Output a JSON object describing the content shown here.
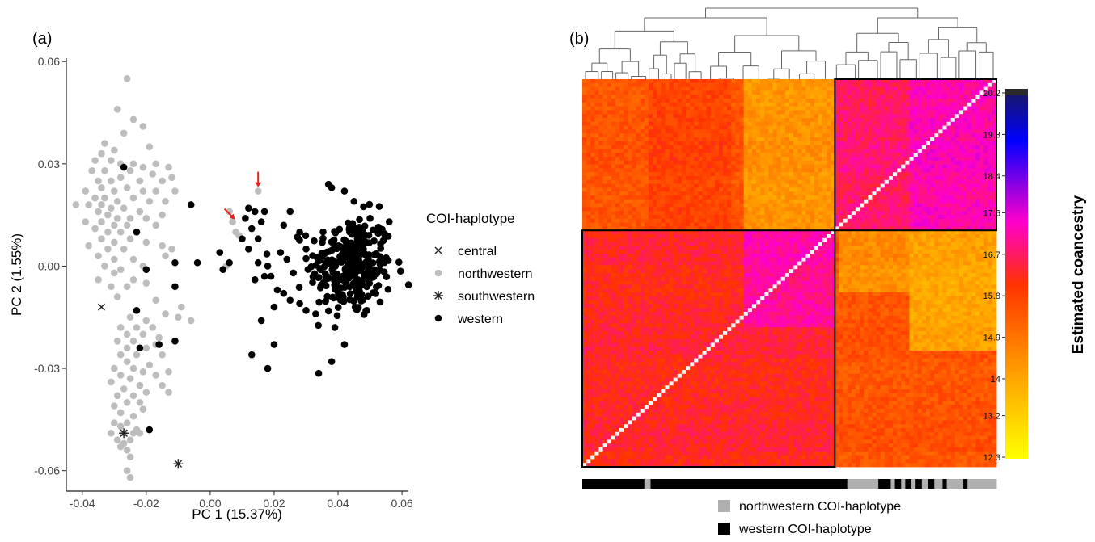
{
  "chart_data": [
    {
      "panel": "(a)",
      "type": "scatter",
      "xlabel": "PC 1 (15.37%)",
      "ylabel": "PC 2 (1.55%)",
      "xlim": [
        -0.045,
        0.062
      ],
      "ylim": [
        -0.066,
        0.061
      ],
      "xticks": [
        -0.04,
        -0.02,
        0.0,
        0.02,
        0.04,
        0.06
      ],
      "xtick_labels": [
        "-0.04",
        "-0.02",
        "0.00",
        "0.02",
        "0.04",
        "0.06"
      ],
      "yticks": [
        -0.06,
        -0.03,
        0.0,
        0.03,
        0.06
      ],
      "ytick_labels": [
        "-0.06",
        "-0.03",
        "0.00",
        "0.03",
        "0.06"
      ],
      "grid": false,
      "legend_title": "COI-haplotype",
      "legend_position": "right",
      "series": [
        {
          "name": "central",
          "marker": "x",
          "color": "#222222",
          "points": [
            [
              -0.034,
              -0.012
            ]
          ]
        },
        {
          "name": "northwestern",
          "marker": "circle",
          "color": "#bdbdbd",
          "points": [
            [
              -0.026,
              0.055
            ],
            [
              -0.029,
              0.046
            ],
            [
              -0.024,
              0.043
            ],
            [
              -0.021,
              0.041
            ],
            [
              -0.027,
              0.039
            ],
            [
              -0.033,
              0.036
            ],
            [
              -0.019,
              0.035
            ],
            [
              -0.034,
              0.033
            ],
            [
              -0.03,
              0.034
            ],
            [
              -0.036,
              0.031
            ],
            [
              -0.031,
              0.031
            ],
            [
              -0.028,
              0.03
            ],
            [
              -0.024,
              0.03
            ],
            [
              -0.021,
              0.029
            ],
            [
              -0.017,
              0.03
            ],
            [
              -0.013,
              0.029
            ],
            [
              -0.037,
              0.028
            ],
            [
              -0.033,
              0.028
            ],
            [
              -0.025,
              0.028
            ],
            [
              -0.018,
              0.027
            ],
            [
              -0.035,
              0.025
            ],
            [
              -0.031,
              0.025
            ],
            [
              -0.028,
              0.026
            ],
            [
              -0.022,
              0.025
            ],
            [
              -0.015,
              0.025
            ],
            [
              -0.012,
              0.026
            ],
            [
              -0.039,
              0.022
            ],
            [
              -0.034,
              0.023
            ],
            [
              -0.03,
              0.022
            ],
            [
              -0.026,
              0.023
            ],
            [
              -0.021,
              0.022
            ],
            [
              -0.017,
              0.022
            ],
            [
              -0.011,
              0.022
            ],
            [
              -0.036,
              0.02
            ],
            [
              -0.033,
              0.02
            ],
            [
              -0.029,
              0.019
            ],
            [
              -0.024,
              0.02
            ],
            [
              -0.019,
              0.019
            ],
            [
              -0.014,
              0.019
            ],
            [
              -0.042,
              0.018
            ],
            [
              -0.038,
              0.018
            ],
            [
              -0.034,
              0.018
            ],
            [
              -0.031,
              0.017
            ],
            [
              -0.027,
              0.017
            ],
            [
              -0.022,
              0.016
            ],
            [
              -0.035,
              0.016
            ],
            [
              -0.032,
              0.015
            ],
            [
              -0.029,
              0.014
            ],
            [
              -0.025,
              0.014
            ],
            [
              -0.02,
              0.014
            ],
            [
              -0.015,
              0.015
            ],
            [
              -0.039,
              0.013
            ],
            [
              -0.034,
              0.013
            ],
            [
              -0.03,
              0.012
            ],
            [
              -0.026,
              0.012
            ],
            [
              -0.017,
              0.012
            ],
            [
              -0.036,
              0.011
            ],
            [
              -0.032,
              0.01
            ],
            [
              -0.028,
              0.01
            ],
            [
              -0.023,
              0.01
            ],
            [
              -0.034,
              0.008
            ],
            [
              -0.03,
              0.007
            ],
            [
              -0.025,
              0.008
            ],
            [
              -0.02,
              0.007
            ],
            [
              -0.038,
              0.006
            ],
            [
              -0.032,
              0.005
            ],
            [
              -0.027,
              0.005
            ],
            [
              -0.015,
              0.006
            ],
            [
              -0.012,
              0.005
            ],
            [
              -0.035,
              0.003
            ],
            [
              -0.03,
              0.002
            ],
            [
              -0.024,
              0.002
            ],
            [
              -0.014,
              0.003
            ],
            [
              -0.033,
              0.0
            ],
            [
              -0.028,
              -0.001
            ],
            [
              -0.021,
              0.0
            ],
            [
              -0.03,
              -0.002
            ],
            [
              -0.035,
              -0.004
            ],
            [
              -0.031,
              -0.006
            ],
            [
              -0.026,
              -0.006
            ],
            [
              -0.02,
              -0.005
            ],
            [
              -0.024,
              -0.004
            ],
            [
              -0.029,
              -0.009
            ],
            [
              -0.017,
              -0.01
            ],
            [
              -0.009,
              -0.012
            ],
            [
              -0.014,
              -0.014
            ],
            [
              -0.025,
              -0.015
            ],
            [
              -0.02,
              -0.016
            ],
            [
              -0.006,
              -0.016
            ],
            [
              -0.028,
              -0.018
            ],
            [
              -0.023,
              -0.018
            ],
            [
              -0.018,
              -0.018
            ],
            [
              -0.026,
              -0.02
            ],
            [
              -0.021,
              -0.02
            ],
            [
              -0.016,
              -0.021
            ],
            [
              -0.029,
              -0.022
            ],
            [
              -0.024,
              -0.022
            ],
            [
              -0.017,
              -0.023
            ],
            [
              -0.026,
              -0.024
            ],
            [
              -0.02,
              -0.024
            ],
            [
              -0.028,
              -0.026
            ],
            [
              -0.023,
              -0.026
            ],
            [
              -0.015,
              -0.026
            ],
            [
              -0.026,
              -0.028
            ],
            [
              -0.019,
              -0.029
            ],
            [
              -0.03,
              -0.03
            ],
            [
              -0.024,
              -0.03
            ],
            [
              -0.021,
              -0.031
            ],
            [
              -0.028,
              -0.032
            ],
            [
              -0.017,
              -0.032
            ],
            [
              -0.025,
              -0.033
            ],
            [
              -0.031,
              -0.034
            ],
            [
              -0.022,
              -0.035
            ],
            [
              -0.015,
              -0.035
            ],
            [
              -0.027,
              -0.036
            ],
            [
              -0.02,
              -0.037
            ],
            [
              -0.029,
              -0.038
            ],
            [
              -0.024,
              -0.038
            ],
            [
              -0.013,
              -0.037
            ],
            [
              -0.026,
              -0.04
            ],
            [
              -0.022,
              -0.04
            ],
            [
              -0.03,
              -0.041
            ],
            [
              -0.021,
              -0.042
            ],
            [
              -0.028,
              -0.043
            ],
            [
              -0.024,
              -0.044
            ],
            [
              -0.03,
              -0.046
            ],
            [
              -0.026,
              -0.046
            ],
            [
              -0.028,
              -0.047
            ],
            [
              -0.023,
              -0.048
            ],
            [
              -0.031,
              -0.049
            ],
            [
              -0.027,
              -0.049
            ],
            [
              -0.024,
              -0.049
            ],
            [
              -0.029,
              -0.051
            ],
            [
              -0.025,
              -0.051
            ],
            [
              -0.027,
              -0.052
            ],
            [
              -0.028,
              -0.053
            ],
            [
              -0.026,
              -0.054
            ],
            [
              -0.025,
              -0.056
            ],
            [
              -0.026,
              -0.06
            ],
            [
              -0.025,
              -0.062
            ],
            [
              -0.022,
              -0.049
            ],
            [
              -0.013,
              -0.031
            ],
            [
              -0.01,
              -0.015
            ],
            [
              0.007,
              0.013
            ],
            [
              0.008,
              0.01
            ],
            [
              0.009,
              0.009
            ],
            [
              0.006,
              0.016
            ],
            [
              0.005,
              0.0
            ],
            [
              0.015,
              0.022
            ]
          ]
        },
        {
          "name": "southwestern",
          "marker": "asterisk",
          "color": "#222222",
          "points": [
            [
              -0.027,
              -0.049
            ],
            [
              -0.01,
              -0.058
            ]
          ]
        },
        {
          "name": "western",
          "marker": "circle",
          "color": "#000000",
          "points": [
            [
              -0.027,
              0.029
            ],
            [
              -0.023,
              0.01
            ],
            [
              -0.02,
              -0.001
            ],
            [
              -0.011,
              0.001
            ],
            [
              -0.023,
              -0.013
            ],
            [
              -0.016,
              -0.023
            ],
            [
              -0.022,
              -0.024
            ],
            [
              -0.011,
              -0.022
            ],
            [
              -0.019,
              -0.048
            ],
            [
              -0.006,
              0.018
            ],
            [
              -0.004,
              0.001
            ],
            [
              -0.011,
              -0.006
            ],
            [
              0.003,
              0.004
            ],
            [
              0.004,
              -0.001
            ],
            [
              0.006,
              0.001
            ],
            [
              0.011,
              0.014
            ],
            [
              0.01,
              0.008
            ],
            [
              0.013,
              0.011
            ],
            [
              0.012,
              0.005
            ],
            [
              0.015,
              0.008
            ],
            [
              0.016,
              0.013
            ],
            [
              0.012,
              0.017
            ],
            [
              0.014,
              0.016
            ],
            [
              0.017,
              0.016
            ],
            [
              0.015,
              0.001
            ],
            [
              0.018,
              0.0
            ],
            [
              0.014,
              -0.004
            ],
            [
              0.019,
              -0.003
            ],
            [
              0.022,
              0.004
            ],
            [
              0.024,
              0.002
            ],
            [
              0.023,
              0.012
            ],
            [
              0.025,
              0.016
            ],
            [
              0.028,
              0.01
            ],
            [
              0.03,
              0.005
            ],
            [
              0.026,
              -0.002
            ],
            [
              0.023,
              -0.008
            ],
            [
              0.02,
              -0.012
            ],
            [
              0.028,
              -0.011
            ],
            [
              0.025,
              -0.01
            ],
            [
              0.03,
              -0.013
            ],
            [
              0.033,
              -0.014
            ],
            [
              0.017,
              -0.003
            ],
            [
              0.021,
              -0.007
            ],
            [
              0.016,
              -0.016
            ],
            [
              0.02,
              -0.023
            ],
            [
              0.013,
              -0.026
            ],
            [
              0.018,
              -0.03
            ],
            [
              0.038,
              -0.028
            ],
            [
              0.042,
              -0.023
            ],
            [
              0.039,
              -0.018
            ],
            [
              0.037,
              0.024
            ],
            [
              0.038,
              0.023
            ],
            [
              0.042,
              0.022
            ],
            [
              0.045,
              0.019
            ],
            [
              0.05,
              0.014
            ],
            [
              0.056,
              0.013
            ]
          ],
          "cluster": {
            "center": [
              0.044,
              0.0
            ],
            "sd": [
              0.0065,
              0.0075
            ],
            "approx_count": 280
          }
        }
      ],
      "annotations": [
        {
          "type": "arrow",
          "color": "#e8231e",
          "points_to": [
            0.015,
            0.022
          ]
        },
        {
          "type": "arrow",
          "color": "#e8231e",
          "points_to": [
            0.008,
            0.013
          ]
        }
      ]
    },
    {
      "panel": "(b)",
      "type": "heatmap",
      "title": "",
      "dendrogram": true,
      "groups": [
        {
          "name": "northwestern COI-haplotype block",
          "start_frac": 0.0,
          "end_frac": 0.61
        },
        {
          "name": "western COI-haplotype block",
          "start_frac": 0.61,
          "end_frac": 1.0
        }
      ],
      "colorbar": {
        "title": "Estimated coancestry",
        "ticks": [
          "20.2",
          "19.3",
          "18.4",
          "17.6",
          "16.7",
          "15.8",
          "14.9",
          "14",
          "13.2",
          "12.3"
        ],
        "range": [
          12.3,
          20.2
        ],
        "colors": [
          "#ffff00",
          "#ffa500",
          "#ff3300",
          "#ff00cc",
          "#0000ff",
          "#2a2a2a"
        ]
      },
      "bottom_bar_legend": [
        {
          "label": "northwestern COI-haplotype",
          "color": "#b0b0b0"
        },
        {
          "label": "western COI-haplotype",
          "color": "#000000"
        }
      ]
    }
  ]
}
